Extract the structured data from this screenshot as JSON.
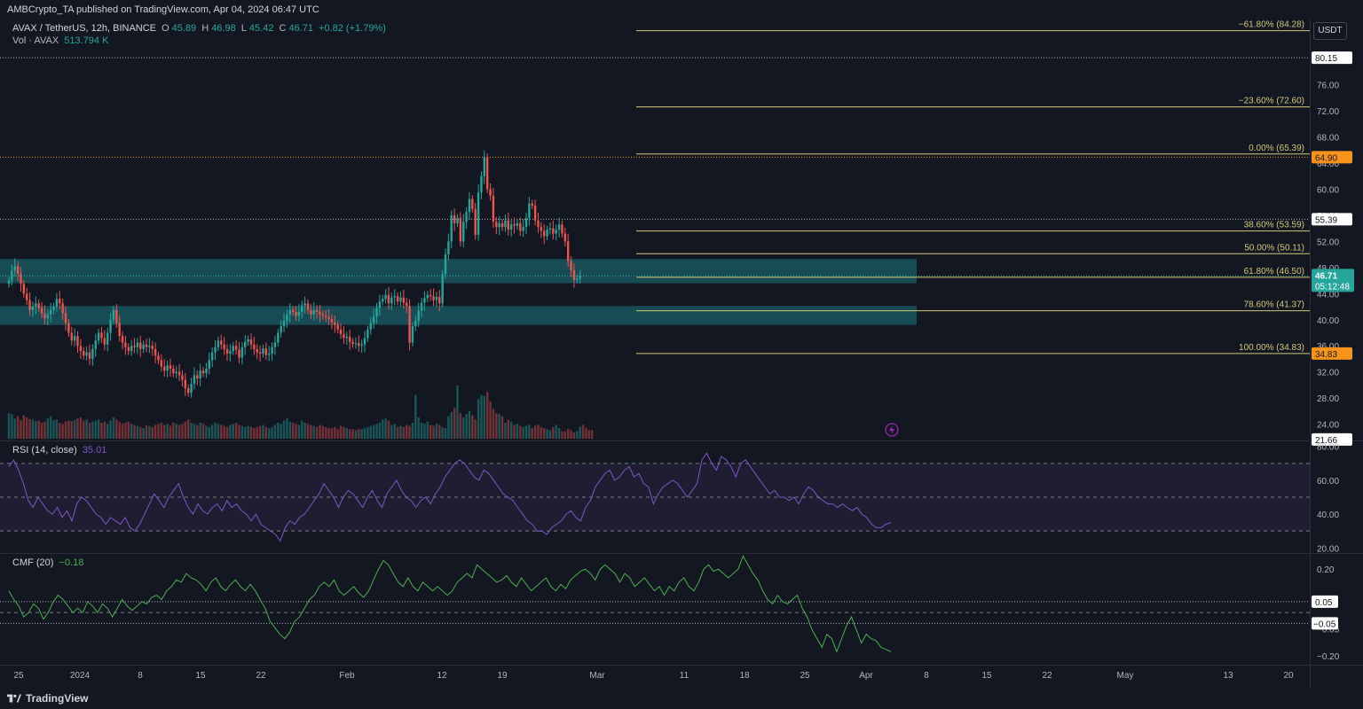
{
  "header": {
    "publisher_line": "AMBCrypto_TA published on TradingView.com, Apr 04, 2024 06:47 UTC"
  },
  "legend": {
    "symbol": "AVAX / TetherUS, 12h, BINANCE",
    "open_label": "O",
    "open": "45.89",
    "high_label": "H",
    "high": "46.98",
    "low_label": "L",
    "low": "45.42",
    "close_label": "C",
    "close": "46.71",
    "change": "+0.82 (+1.79%)",
    "volume_label": "Vol · AVAX",
    "volume": "513.794 K"
  },
  "currency_button": "USDT",
  "rsi_legend": {
    "label": "RSI (14, close)",
    "value": "35.01"
  },
  "cmf_legend": {
    "label": "CMF (20)",
    "value": "−0.18"
  },
  "footer": {
    "brand": "TradingView"
  },
  "colors": {
    "background": "#131722",
    "up": "#26a69a",
    "down": "#ef5350",
    "fib": "#d1c97a",
    "zone": "#1b5f66",
    "rsi": "#7e57c2",
    "cmf": "#4caf50",
    "grid": "#1e222d"
  },
  "chart_data": [
    {
      "type": "candlestick",
      "title": "AVAX / TetherUS, 12h, BINANCE",
      "x_tick_labels": [
        "25",
        "2024",
        "8",
        "15",
        "22",
        "Feb",
        "12",
        "19",
        "Mar",
        "11",
        "18",
        "25",
        "Apr",
        "8",
        "15",
        "22",
        "May",
        "13",
        "20"
      ],
      "y_ticks": [
        "84.00",
        "80.00",
        "76.00",
        "72.00",
        "68.00",
        "64.00",
        "60.00",
        "56.00",
        "52.00",
        "48.00",
        "44.00",
        "40.00",
        "36.00",
        "32.00",
        "28.00",
        "24.00"
      ],
      "price_markers": [
        "80.15",
        "64.90",
        "55.39",
        "46.71",
        "34.83",
        "21.66"
      ],
      "countdown": "05:12:48",
      "ylim": [
        21.5,
        86
      ],
      "fibonacci": [
        {
          "label": "−61.80% (84.28)",
          "value": 84.28
        },
        {
          "label": "−23.60% (72.60)",
          "value": 72.6
        },
        {
          "label": "0.00% (65.39)",
          "value": 65.39
        },
        {
          "label": "38.60% (53.59)",
          "value": 53.59
        },
        {
          "label": "50.00% (50.11)",
          "value": 50.11
        },
        {
          "label": "61.80% (46.50)",
          "value": 46.5
        },
        {
          "label": "78.60% (41.37)",
          "value": 41.37
        },
        {
          "label": "100.00% (34.83)",
          "value": 34.83
        }
      ],
      "zones": [
        {
          "from": 45.6,
          "to": 49.3
        },
        {
          "from": 39.2,
          "to": 42.1
        }
      ],
      "closes": [
        46,
        47.5,
        48.2,
        47,
        45.5,
        44,
        43,
        41.5,
        42,
        42.5,
        41.8,
        41,
        40.2,
        40.8,
        41.5,
        42,
        43.2,
        42.5,
        41,
        39.5,
        38,
        36.8,
        37.5,
        36,
        35.2,
        34.5,
        35,
        34,
        35.5,
        36.8,
        38,
        37.2,
        36.2,
        38,
        40,
        41.5,
        39.5,
        37.5,
        36.5,
        35.8,
        35.2,
        36,
        35.8,
        36.5,
        35.5,
        36.2,
        35.8,
        36,
        35.5,
        34.5,
        33.8,
        32.8,
        32.2,
        33,
        32.5,
        31.8,
        32,
        31.5,
        30.8,
        29.5,
        28.8,
        30.2,
        31.5,
        31,
        32.2,
        31.8,
        32.5,
        33.8,
        35,
        35.8,
        36.8,
        36.2,
        35.5,
        34.8,
        35.2,
        36,
        35.4,
        34.2,
        35.8,
        36.6,
        37,
        36.2,
        35.5,
        35,
        34.8,
        35.6,
        34.6,
        34.8,
        35.8,
        36.5,
        38,
        39,
        39.8,
        40.8,
        41.5,
        41.2,
        40.6,
        41.2,
        42.2,
        42.5,
        41.5,
        40.8,
        41.5,
        41.2,
        40.8,
        40.6,
        40.4,
        40.1,
        39.6,
        39.2,
        38.5,
        37.8,
        37.2,
        37.4,
        36.6,
        36.3,
        36.4,
        36,
        36.2,
        37.2,
        38.5,
        39.5,
        40.5,
        41.8,
        42.8,
        43.2,
        43.8,
        42.5,
        43.4,
        43.6,
        42.8,
        43.4,
        42.6,
        42.1,
        36.5,
        39,
        39.8,
        41.4,
        42.6,
        43.3,
        43.8,
        43.6,
        43,
        43.5,
        42.5,
        47,
        50,
        52,
        56,
        54.8,
        55.6,
        52,
        55,
        56.5,
        58.5,
        57,
        53,
        59.5,
        62,
        64.9,
        60,
        59,
        55,
        54.2,
        54.8,
        54.2,
        55.2,
        53.8,
        54.6,
        54.4,
        54.8,
        53.6,
        54.2,
        55.6,
        57.8,
        57.5,
        55.2,
        54.2,
        53.6,
        52.8,
        53.8,
        54,
        53.2,
        53.8,
        54.6,
        53.2,
        52,
        49,
        47.6,
        46.1,
        46.3,
        46.71
      ],
      "volumes": [
        48,
        46,
        38,
        42,
        35,
        44,
        40,
        37,
        36,
        33,
        34,
        30,
        32,
        38,
        42,
        35,
        36,
        30,
        28,
        32,
        34,
        33,
        35,
        38,
        40,
        34,
        36,
        30,
        32,
        34,
        36,
        30,
        32,
        28,
        34,
        40,
        36,
        32,
        28,
        30,
        32,
        28,
        26,
        24,
        22,
        20,
        25,
        24,
        22,
        26,
        28,
        30,
        26,
        28,
        24,
        30,
        28,
        26,
        28,
        32,
        36,
        30,
        28,
        26,
        30,
        28,
        24,
        22,
        26,
        30,
        28,
        26,
        24,
        22,
        26,
        28,
        30,
        26,
        24,
        22,
        24,
        22,
        20,
        22,
        24,
        26,
        22,
        20,
        22,
        26,
        30,
        28,
        34,
        38,
        32,
        30,
        28,
        26,
        34,
        30,
        28,
        26,
        24,
        22,
        26,
        24,
        22,
        20,
        20,
        22,
        18,
        24,
        22,
        20,
        18,
        18,
        16,
        18,
        18,
        20,
        22,
        24,
        26,
        28,
        30,
        36,
        38,
        34,
        26,
        28,
        22,
        24,
        22,
        26,
        24,
        30,
        82,
        40,
        30,
        28,
        32,
        26,
        24,
        28,
        26,
        22,
        20,
        42,
        50,
        58,
        100,
        48,
        40,
        46,
        52,
        44,
        36,
        74,
        82,
        80,
        88,
        70,
        56,
        48,
        46,
        42,
        30,
        36,
        32,
        26,
        28,
        24,
        22,
        24,
        26,
        20,
        24,
        26,
        22,
        20,
        18,
        16,
        22,
        26,
        20,
        14,
        14,
        18,
        16,
        12,
        14,
        22,
        26,
        20,
        16,
        16
      ]
    },
    {
      "type": "line",
      "title": "RSI (14, close)",
      "y_ticks": [
        "80.00",
        "60.00",
        "40.00",
        "20.00"
      ],
      "ylim": [
        17,
        83
      ],
      "bands": [
        70,
        50,
        30
      ],
      "values": [
        68,
        72,
        66,
        58,
        48,
        44,
        50,
        46,
        42,
        40,
        44,
        38,
        42,
        36,
        46,
        50,
        48,
        44,
        40,
        38,
        34,
        38,
        36,
        34,
        38,
        32,
        30,
        34,
        40,
        46,
        52,
        48,
        44,
        50,
        54,
        58,
        50,
        44,
        40,
        46,
        42,
        40,
        44,
        46,
        42,
        48,
        44,
        46,
        42,
        40,
        36,
        40,
        34,
        32,
        30,
        28,
        24,
        32,
        36,
        34,
        38,
        40,
        44,
        48,
        52,
        58,
        54,
        50,
        44,
        50,
        54,
        52,
        48,
        44,
        50,
        54,
        48,
        44,
        52,
        56,
        60,
        54,
        50,
        48,
        44,
        48,
        50,
        46,
        52,
        56,
        62,
        66,
        70,
        72,
        70,
        66,
        62,
        60,
        66,
        64,
        60,
        56,
        52,
        50,
        48,
        44,
        40,
        36,
        34,
        30,
        30,
        28,
        32,
        34,
        36,
        40,
        42,
        38,
        36,
        44,
        48,
        56,
        60,
        64,
        66,
        60,
        62,
        66,
        68,
        62,
        64,
        58,
        56,
        46,
        52,
        56,
        58,
        60,
        58,
        54,
        50,
        54,
        58,
        72,
        76,
        70,
        66,
        74,
        72,
        68,
        62,
        70,
        72,
        68,
        64,
        60,
        56,
        52,
        54,
        50,
        50,
        48,
        50,
        46,
        52,
        56,
        54,
        50,
        48,
        46,
        46,
        44,
        46,
        44,
        42,
        44,
        40,
        38,
        34,
        32,
        32,
        34,
        35
      ],
      "last_value": "35.01"
    },
    {
      "type": "line",
      "title": "CMF (20)",
      "y_ticks": [
        "0.20",
        "−0.05",
        "−0.20"
      ],
      "price_markers": [
        "0.05",
        "−0.05"
      ],
      "ylim": [
        -0.24,
        0.27
      ],
      "bands": [
        0.05,
        0,
        -0.05
      ],
      "values": [
        0.1,
        0.06,
        0.03,
        -0.02,
        0,
        0.04,
        0.02,
        -0.03,
        0,
        0.05,
        0.08,
        0.06,
        0.03,
        0,
        0.02,
        0,
        0.05,
        0.03,
        0,
        0.04,
        0.02,
        -0.02,
        0.02,
        0.06,
        0.03,
        0.01,
        0.03,
        0.05,
        0.04,
        0.07,
        0.08,
        0.06,
        0.1,
        0.12,
        0.15,
        0.14,
        0.18,
        0.16,
        0.15,
        0.13,
        0.1,
        0.14,
        0.16,
        0.12,
        0.1,
        0.13,
        0.15,
        0.12,
        0.1,
        0.13,
        0.1,
        0.06,
        0.02,
        -0.04,
        -0.07,
        -0.1,
        -0.12,
        -0.09,
        -0.04,
        -0.02,
        0.02,
        0.06,
        0.08,
        0.12,
        0.14,
        0.12,
        0.15,
        0.1,
        0.08,
        0.1,
        0.12,
        0.09,
        0.07,
        0.1,
        0.15,
        0.2,
        0.24,
        0.22,
        0.18,
        0.14,
        0.12,
        0.16,
        0.12,
        0.1,
        0.14,
        0.12,
        0.1,
        0.12,
        0.1,
        0.08,
        0.1,
        0.14,
        0.16,
        0.18,
        0.16,
        0.22,
        0.2,
        0.18,
        0.16,
        0.14,
        0.15,
        0.17,
        0.14,
        0.12,
        0.16,
        0.13,
        0.1,
        0.12,
        0.14,
        0.16,
        0.12,
        0.1,
        0.13,
        0.11,
        0.15,
        0.17,
        0.19,
        0.2,
        0.18,
        0.15,
        0.2,
        0.22,
        0.2,
        0.18,
        0.14,
        0.18,
        0.16,
        0.12,
        0.14,
        0.16,
        0.13,
        0.1,
        0.12,
        0.08,
        0.12,
        0.1,
        0.14,
        0.16,
        0.12,
        0.1,
        0.14,
        0.2,
        0.22,
        0.19,
        0.2,
        0.18,
        0.16,
        0.18,
        0.2,
        0.26,
        0.22,
        0.18,
        0.15,
        0.1,
        0.06,
        0.04,
        0.08,
        0.05,
        0.04,
        0.06,
        0.08,
        0.02,
        -0.02,
        -0.08,
        -0.12,
        -0.16,
        -0.1,
        -0.12,
        -0.18,
        -0.12,
        -0.06,
        -0.02,
        -0.08,
        -0.14,
        -0.1,
        -0.12,
        -0.13,
        -0.16,
        -0.17,
        -0.18
      ],
      "last_value": "−0.18"
    }
  ]
}
